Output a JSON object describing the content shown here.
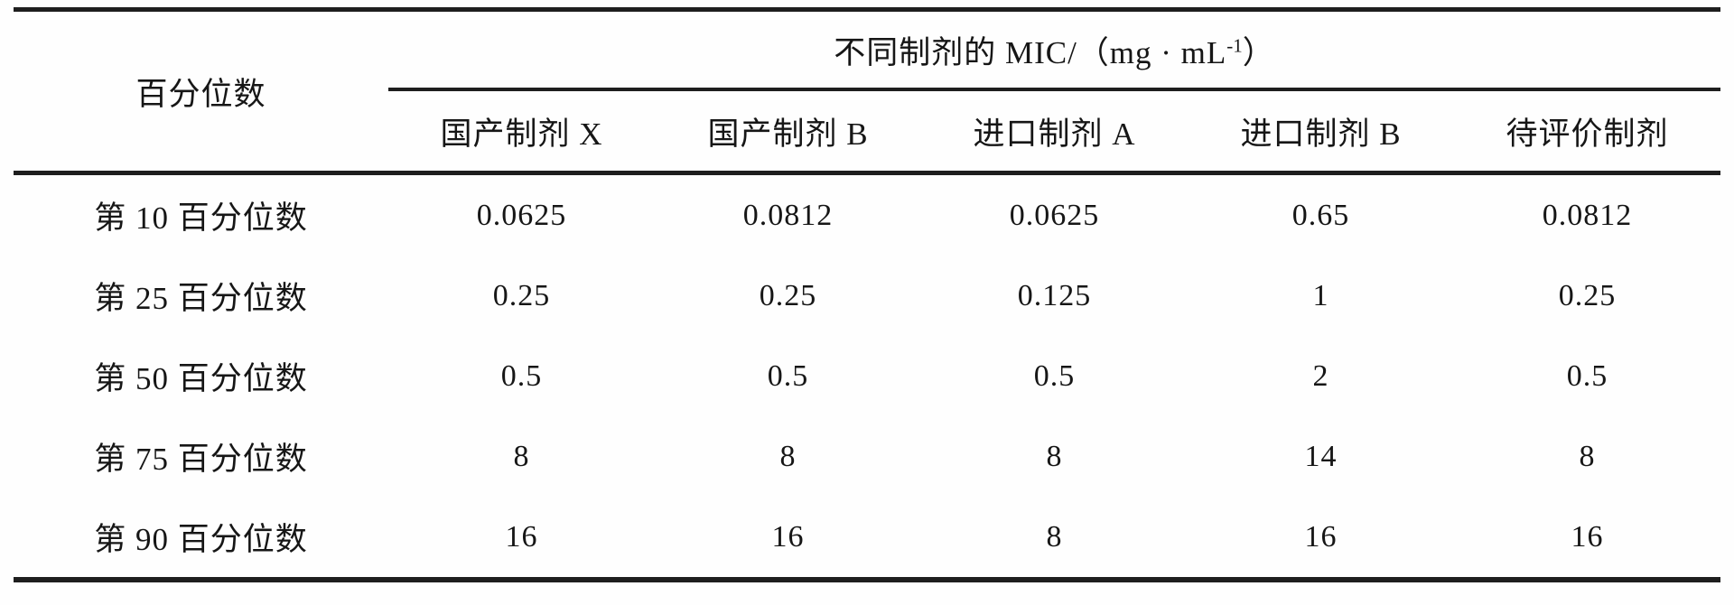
{
  "table": {
    "stub_header": "百分位数",
    "spanner": {
      "prefix": "不同制剂的 MIC/（mg · mL",
      "sup": "-1",
      "suffix": "）"
    },
    "columns": [
      "国产制剂 X",
      "国产制剂 B",
      "进口制剂 A",
      "进口制剂 B",
      "待评价制剂"
    ],
    "rows": [
      {
        "label": "第 10 百分位数",
        "values": [
          "0.0625",
          "0.0812",
          "0.0625",
          "0.65",
          "0.0812"
        ]
      },
      {
        "label": "第 25 百分位数",
        "values": [
          "0.25",
          "0.25",
          "0.125",
          "1",
          "0.25"
        ]
      },
      {
        "label": "第 50 百分位数",
        "values": [
          "0.5",
          "0.5",
          "0.5",
          "2",
          "0.5"
        ]
      },
      {
        "label": "第 75 百分位数",
        "values": [
          "8",
          "8",
          "8",
          "14",
          "8"
        ]
      },
      {
        "label": "第 90 百分位数",
        "values": [
          "16",
          "16",
          "8",
          "16",
          "16"
        ]
      }
    ],
    "colors": {
      "rule": "#1e1e1e",
      "text": "#161616",
      "background": "#fefefe"
    }
  }
}
